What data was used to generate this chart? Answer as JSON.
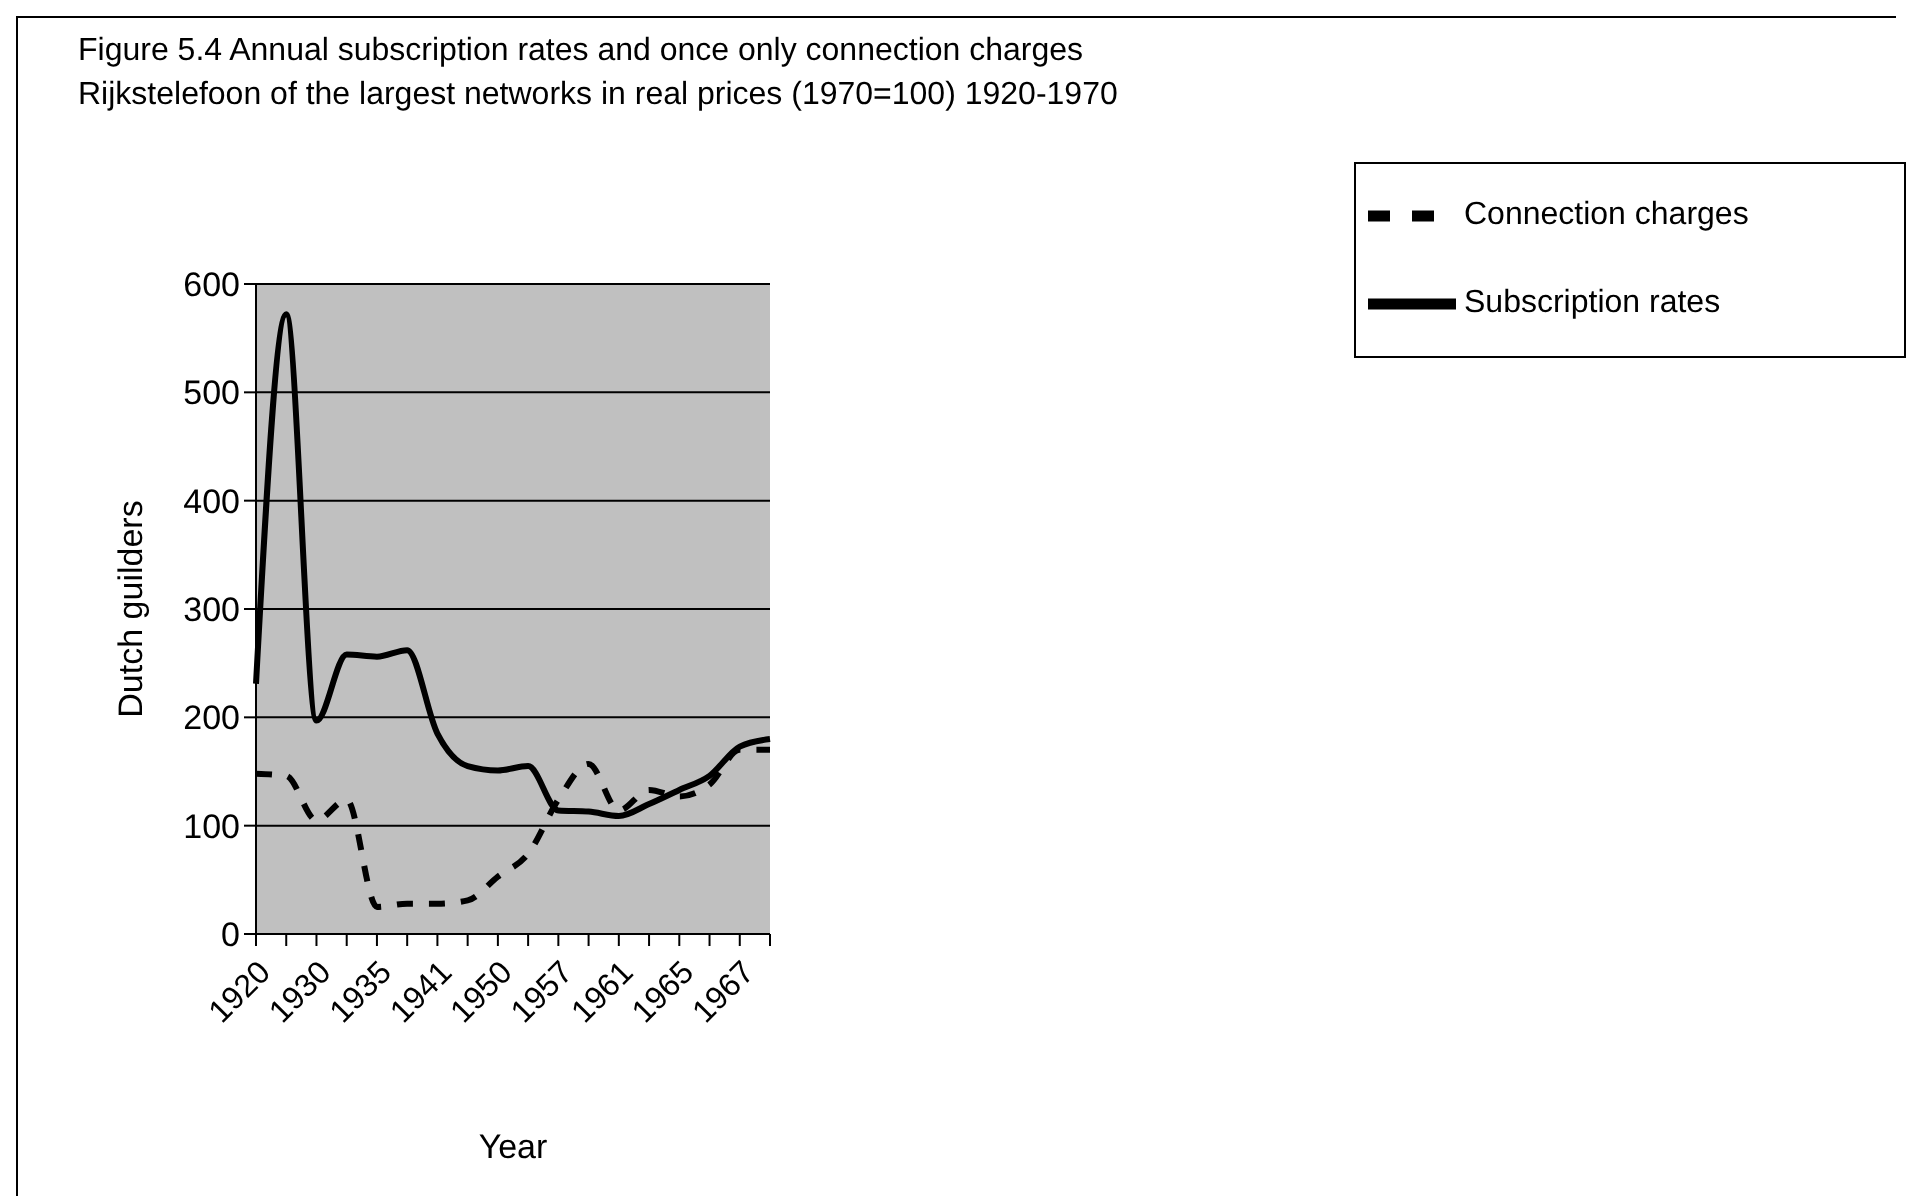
{
  "chart_data": {
    "type": "line",
    "title": "Figure 5.4 Annual subscription rates and once only connection charges Rijkstelefoon of the largest networks in real prices (1970=100) 1920-1970",
    "xlabel": "Year",
    "ylabel": "Dutch guilders",
    "categories": [
      "1920",
      null,
      "1930",
      null,
      "1935",
      null,
      "1941",
      null,
      "1950",
      null,
      "1957",
      null,
      "1961",
      null,
      "1965",
      null,
      "1967",
      null
    ],
    "series": [
      {
        "name": "Subscription rates",
        "color": "#000000",
        "line_style": "solid",
        "values": [
          231,
          572,
          197,
          258,
          256,
          262,
          185,
          155,
          151,
          155,
          114,
          113,
          109,
          120,
          133,
          146,
          173,
          180
        ]
      },
      {
        "name": "Connection charges",
        "color": "#000000",
        "line_style": "dashed",
        "values": [
          148,
          146,
          105,
          124,
          25,
          28,
          28,
          31,
          53,
          74,
          124,
          157,
          114,
          133,
          127,
          138,
          170,
          170
        ]
      }
    ],
    "ylim": [
      0,
      600
    ],
    "yticks": [
      0,
      100,
      200,
      300,
      400,
      500,
      600
    ],
    "grid": "y",
    "legend": "top right"
  }
}
